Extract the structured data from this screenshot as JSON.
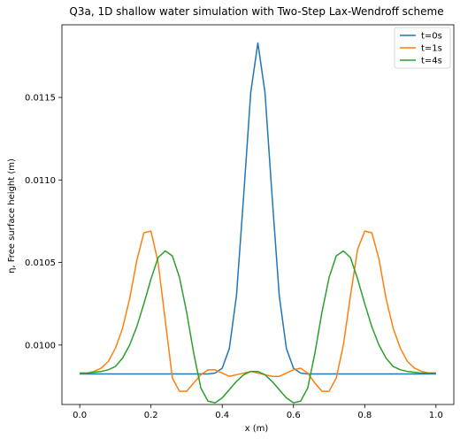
{
  "chart_data": {
    "type": "line",
    "title": "Q3a, 1D shallow water simulation with Two-Step Lax-Wendroff scheme",
    "xlabel": "x (m)",
    "ylabel": "η, Free surface height (m)",
    "xlim": [
      -0.05,
      1.05
    ],
    "ylim": [
      0.00964,
      0.01194
    ],
    "xticks": [
      0.0,
      0.2,
      0.4,
      0.6,
      0.8,
      1.0
    ],
    "xtick_labels": [
      "0.0",
      "0.2",
      "0.4",
      "0.6",
      "0.8",
      "1.0"
    ],
    "yticks": [
      0.01,
      0.0105,
      0.011,
      0.0115
    ],
    "ytick_labels": [
      "0.0100",
      "0.0105",
      "0.0110",
      "0.0115"
    ],
    "grid": false,
    "legend": "top-right",
    "x": [
      0.0,
      0.02,
      0.04,
      0.06,
      0.08,
      0.1,
      0.12,
      0.14,
      0.16,
      0.18,
      0.2,
      0.22,
      0.24,
      0.26,
      0.28,
      0.3,
      0.32,
      0.34,
      0.36,
      0.38,
      0.4,
      0.42,
      0.44,
      0.46,
      0.48,
      0.5,
      0.52,
      0.54,
      0.56,
      0.58,
      0.6,
      0.62,
      0.64,
      0.66,
      0.68,
      0.7,
      0.72,
      0.74,
      0.76,
      0.78,
      0.8,
      0.82,
      0.84,
      0.86,
      0.88,
      0.9,
      0.92,
      0.94,
      0.96,
      0.98,
      1.0
    ],
    "series": [
      {
        "name": "t=0s",
        "color": "#1f77b4",
        "values": [
          0.009825,
          0.009825,
          0.009825,
          0.009825,
          0.009825,
          0.009825,
          0.009825,
          0.009825,
          0.009825,
          0.009825,
          0.009825,
          0.009825,
          0.009825,
          0.009825,
          0.009825,
          0.009825,
          0.009825,
          0.009825,
          0.009825,
          0.00983,
          0.00986,
          0.00998,
          0.0103,
          0.0109,
          0.01153,
          0.01183,
          0.01153,
          0.0109,
          0.0103,
          0.00998,
          0.00986,
          0.00983,
          0.009825,
          0.009825,
          0.009825,
          0.009825,
          0.009825,
          0.009825,
          0.009825,
          0.009825,
          0.009825,
          0.009825,
          0.009825,
          0.009825,
          0.009825,
          0.009825,
          0.009825,
          0.009825,
          0.009825,
          0.009825,
          0.009825
        ]
      },
      {
        "name": "t=1s",
        "color": "#ff7f0e",
        "values": [
          0.00983,
          0.00983,
          0.00984,
          0.00986,
          0.0099,
          0.00998,
          0.0101,
          0.01028,
          0.01051,
          0.01068,
          0.01069,
          0.0105,
          0.01015,
          0.0098,
          0.00972,
          0.00972,
          0.00977,
          0.00982,
          0.00985,
          0.00985,
          0.00983,
          0.00981,
          0.00982,
          0.00983,
          0.00984,
          0.00983,
          0.00982,
          0.00981,
          0.00981,
          0.00983,
          0.00985,
          0.00986,
          0.00983,
          0.00977,
          0.00972,
          0.00972,
          0.0098,
          0.01,
          0.0103,
          0.01058,
          0.01069,
          0.01068,
          0.01052,
          0.01028,
          0.0101,
          0.00998,
          0.0099,
          0.00986,
          0.00984,
          0.00983,
          0.00983
        ]
      },
      {
        "name": "t=4s",
        "color": "#2ca02c",
        "values": [
          0.00983,
          0.00983,
          0.009835,
          0.00984,
          0.00985,
          0.00987,
          0.00992,
          0.01,
          0.01011,
          0.01025,
          0.0104,
          0.01053,
          0.01057,
          0.01054,
          0.01041,
          0.0102,
          0.00995,
          0.00974,
          0.00966,
          0.00965,
          0.00968,
          0.00973,
          0.00978,
          0.00982,
          0.00984,
          0.00984,
          0.00982,
          0.00978,
          0.00973,
          0.00968,
          0.00965,
          0.00966,
          0.00974,
          0.00995,
          0.0102,
          0.01041,
          0.01054,
          0.01057,
          0.01053,
          0.0104,
          0.01025,
          0.01011,
          0.01,
          0.00992,
          0.00987,
          0.00985,
          0.00984,
          0.009835,
          0.00983,
          0.00983,
          0.00983
        ]
      }
    ]
  }
}
